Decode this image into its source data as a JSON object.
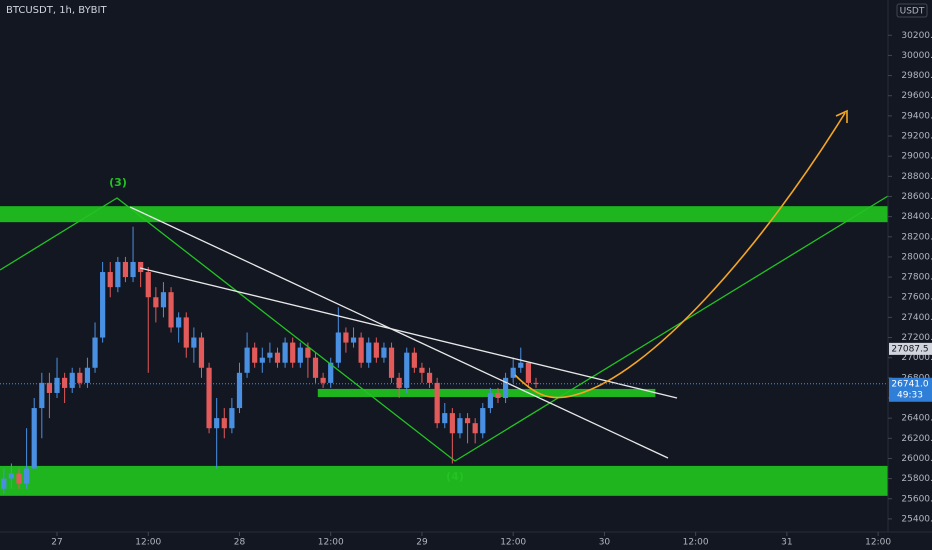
{
  "chart_data": {
    "type": "candlestick",
    "title": "BTCUSDT, 1h, BYBIT",
    "currency": "USDT",
    "up_color": "#4a90e2",
    "down_color": "#e35a5a",
    "zone_color": "#1fb51f",
    "xlim": [
      -7.5,
      109.3
    ],
    "ylim": [
      25270,
      30550
    ],
    "xticks": [
      {
        "value": 0,
        "label": "27"
      },
      {
        "value": 12,
        "label": "12:00"
      },
      {
        "value": 24,
        "label": "28"
      },
      {
        "value": 36,
        "label": "12:00"
      },
      {
        "value": 48,
        "label": "29"
      },
      {
        "value": 60,
        "label": "12:00"
      },
      {
        "value": 72,
        "label": "30"
      },
      {
        "value": 84,
        "label": "12:00"
      },
      {
        "value": 96,
        "label": "31"
      },
      {
        "value": 108,
        "label": "12:00"
      }
    ],
    "yticks": [
      {
        "value": 25400,
        "label": "25400.0"
      },
      {
        "value": 25600,
        "label": "25600.0"
      },
      {
        "value": 25800,
        "label": "25800.0"
      },
      {
        "value": 26000,
        "label": "26000.0"
      },
      {
        "value": 26200,
        "label": "26200.0"
      },
      {
        "value": 26400,
        "label": "26400.0"
      },
      {
        "value": 26600,
        "label": "26600.0"
      },
      {
        "value": 26800,
        "label": "26800.0"
      },
      {
        "value": 27000,
        "label": "27000.0"
      },
      {
        "value": 27200,
        "label": "27200.0"
      },
      {
        "value": 27400,
        "label": "27400.0"
      },
      {
        "value": 27600,
        "label": "27600.0"
      },
      {
        "value": 27800,
        "label": "27800.0"
      },
      {
        "value": 28000,
        "label": "28000.0"
      },
      {
        "value": 28200,
        "label": "28200.0"
      },
      {
        "value": 28400,
        "label": "28400.0"
      },
      {
        "value": 28600,
        "label": "28600.0"
      },
      {
        "value": 28800,
        "label": "28800.0"
      },
      {
        "value": 29000,
        "label": "29000.0"
      },
      {
        "value": 29200,
        "label": "29200.0"
      },
      {
        "value": 29400,
        "label": "29400.0"
      },
      {
        "value": 29600,
        "label": "29600.0"
      },
      {
        "value": 29800,
        "label": "29800.0"
      },
      {
        "value": 30000,
        "label": "30000.0"
      },
      {
        "value": 30200,
        "label": "30200.0"
      }
    ],
    "x": [
      -7,
      -6,
      -5,
      -4,
      -3,
      -2,
      -1,
      0,
      1,
      2,
      3,
      4,
      5,
      6,
      7,
      8,
      9,
      10,
      11,
      12,
      13,
      14,
      15,
      16,
      17,
      18,
      19,
      20,
      21,
      22,
      23,
      24,
      25,
      26,
      27,
      28,
      29,
      30,
      31,
      32,
      33,
      34,
      35,
      36,
      37,
      38,
      39,
      40,
      41,
      42,
      43,
      44,
      45,
      46,
      47,
      48,
      49,
      50,
      51,
      52,
      53,
      54,
      55,
      56,
      57,
      58,
      59,
      60,
      61,
      62,
      63
    ],
    "open": [
      25700,
      25800,
      25850,
      25750,
      25900,
      26500,
      26750,
      26650,
      26800,
      26700,
      26850,
      26750,
      26900,
      27200,
      27850,
      27700,
      27950,
      27800,
      27950,
      27850,
      27600,
      27500,
      27650,
      27300,
      27400,
      27100,
      27200,
      26900,
      26300,
      26400,
      26300,
      26500,
      26850,
      27100,
      26950,
      27000,
      27050,
      26950,
      27150,
      26950,
      27100,
      27000,
      26800,
      26750,
      26950,
      27250,
      27150,
      27200,
      26950,
      27150,
      27000,
      27100,
      26800,
      26700,
      27050,
      26900,
      26850,
      26750,
      26350,
      26450,
      26250,
      26400,
      26350,
      26250,
      26500,
      26650,
      26600,
      26800,
      26900,
      26950,
      26750
    ],
    "high": [
      25900,
      25950,
      25900,
      26300,
      26600,
      26850,
      26850,
      27000,
      26850,
      26900,
      26900,
      27000,
      27350,
      27950,
      27950,
      28000,
      28000,
      28300,
      27950,
      27900,
      27700,
      27750,
      27700,
      27450,
      27450,
      27300,
      27250,
      26950,
      26600,
      26500,
      26600,
      26950,
      27250,
      27150,
      27100,
      27150,
      27100,
      27200,
      27200,
      27150,
      27150,
      27050,
      26850,
      27000,
      27500,
      27300,
      27300,
      27250,
      27200,
      27200,
      27150,
      27150,
      26850,
      27100,
      27100,
      26950,
      26900,
      26800,
      26550,
      26500,
      26450,
      26450,
      26400,
      26550,
      26700,
      26700,
      26850,
      27000,
      27100,
      26950,
      26800
    ],
    "low": [
      25650,
      25700,
      25700,
      25700,
      25900,
      26200,
      26400,
      26600,
      26550,
      26650,
      26700,
      26700,
      26850,
      27150,
      27600,
      27650,
      27750,
      27750,
      27700,
      26850,
      27350,
      27400,
      27250,
      27150,
      27000,
      26950,
      26800,
      26250,
      25900,
      26200,
      26250,
      26450,
      26800,
      26900,
      26850,
      26950,
      26900,
      26900,
      26900,
      26900,
      26800,
      26750,
      26700,
      26700,
      26900,
      27050,
      27100,
      26900,
      26900,
      26950,
      26950,
      26750,
      26600,
      26650,
      26850,
      26750,
      26700,
      26300,
      26300,
      25950,
      26200,
      26150,
      26150,
      26200,
      26450,
      26550,
      26550,
      26750,
      26850,
      26700,
      26700
    ],
    "close": [
      25800,
      25850,
      25750,
      25900,
      26500,
      26750,
      26650,
      26800,
      26700,
      26850,
      26750,
      26900,
      27200,
      27850,
      27700,
      27950,
      27800,
      27950,
      27850,
      27600,
      27500,
      27650,
      27300,
      27400,
      27100,
      27200,
      26900,
      26300,
      26400,
      26300,
      26500,
      26850,
      27100,
      26950,
      27000,
      27050,
      26950,
      27150,
      26950,
      27100,
      27000,
      26800,
      26750,
      26950,
      27250,
      27150,
      27200,
      26950,
      27150,
      27000,
      27100,
      26800,
      26700,
      27050,
      26900,
      26850,
      26750,
      26350,
      26450,
      26250,
      26400,
      26350,
      26250,
      26500,
      26650,
      26600,
      26800,
      26900,
      26950,
      26750,
      26741
    ],
    "zones": [
      {
        "low": 28345,
        "high": 28504
      },
      {
        "low": 25629,
        "high": 25926
      },
      {
        "low": 26610,
        "high": 26690,
        "from_x": 34.3,
        "to_x": 78.7
      }
    ],
    "annotations": [
      "(3)",
      "(4)"
    ],
    "marker_price": 27087.5,
    "last_price": {
      "value": 26741,
      "label": "26741.0"
    },
    "countdown": "49:33"
  }
}
